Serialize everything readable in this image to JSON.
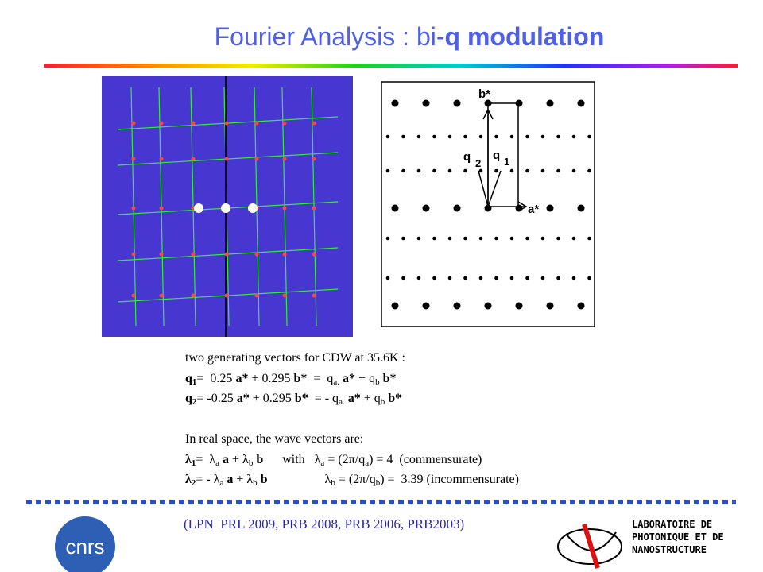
{
  "title": {
    "plain": "Fourier Analysis : bi-",
    "bold": "q modulation"
  },
  "diagram": {
    "labels": [
      "b*",
      "q",
      "2",
      "q",
      "1",
      "a*"
    ]
  },
  "body": [
    [
      {
        "t": "two generating vectors for CDW at 35.6K :",
        "s": "n"
      }
    ],
    [
      {
        "t": "q",
        "s": "b"
      },
      {
        "t": "1",
        "s": "bsub"
      },
      {
        "t": "=  0.25 ",
        "s": "n"
      },
      {
        "t": "a*",
        "s": "b"
      },
      {
        "t": " + 0.295 ",
        "s": "n"
      },
      {
        "t": "b*",
        "s": "b"
      },
      {
        "t": "  =  q",
        "s": "n"
      },
      {
        "t": "a.",
        "s": "sub"
      },
      {
        "t": " a*",
        "s": "b"
      },
      {
        "t": " + q",
        "s": "n"
      },
      {
        "t": "b",
        "s": "sub"
      },
      {
        "t": " b*",
        "s": "b"
      }
    ],
    [
      {
        "t": "q",
        "s": "b"
      },
      {
        "t": "2",
        "s": "bsub"
      },
      {
        "t": "= -0.25 ",
        "s": "n"
      },
      {
        "t": "a*",
        "s": "b"
      },
      {
        "t": " + 0.295 ",
        "s": "n"
      },
      {
        "t": "b*",
        "s": "b"
      },
      {
        "t": "  = - q",
        "s": "n"
      },
      {
        "t": "a.",
        "s": "sub"
      },
      {
        "t": " a*",
        "s": "b"
      },
      {
        "t": " + q",
        "s": "n"
      },
      {
        "t": "b",
        "s": "sub"
      },
      {
        "t": " b*",
        "s": "b"
      }
    ],
    [],
    [
      {
        "t": "In real space, the wave vectors are:",
        "s": "n"
      }
    ],
    [
      {
        "t": "λ",
        "s": "b"
      },
      {
        "t": "1",
        "s": "bsub"
      },
      {
        "t": "=  λ",
        "s": "n"
      },
      {
        "t": "a",
        "s": "sub"
      },
      {
        "t": " a",
        "s": "b"
      },
      {
        "t": " + λ",
        "s": "n"
      },
      {
        "t": "b",
        "s": "sub"
      },
      {
        "t": " b",
        "s": "b"
      },
      {
        "t": "      with   λ",
        "s": "n"
      },
      {
        "t": "a",
        "s": "sub"
      },
      {
        "t": " = (2π/q",
        "s": "n"
      },
      {
        "t": "a",
        "s": "sub"
      },
      {
        "t": ") = 4  (commensurate)",
        "s": "n"
      }
    ],
    [
      {
        "t": "λ",
        "s": "b"
      },
      {
        "t": "2",
        "s": "bsub"
      },
      {
        "t": "= - λ",
        "s": "n"
      },
      {
        "t": "a",
        "s": "sub"
      },
      {
        "t": " a",
        "s": "b"
      },
      {
        "t": " + λ",
        "s": "n"
      },
      {
        "t": "b",
        "s": "sub"
      },
      {
        "t": " b",
        "s": "b"
      },
      {
        "t": "                  λ",
        "s": "n"
      },
      {
        "t": "b",
        "s": "sub"
      },
      {
        "t": " = (2π/q",
        "s": "n"
      },
      {
        "t": "b",
        "s": "sub"
      },
      {
        "t": ") =  3.39 (incommensurate)",
        "s": "n"
      }
    ]
  ],
  "reference": "(LPN  PRL 2009, PRB 2008, PRB 2006, PRB2003)",
  "logos": {
    "cnrs": "cnrs",
    "lab": [
      "LABORATOIRE DE",
      "PHOTONIQUE ET DE",
      "NANOSTRUCTURE"
    ]
  }
}
